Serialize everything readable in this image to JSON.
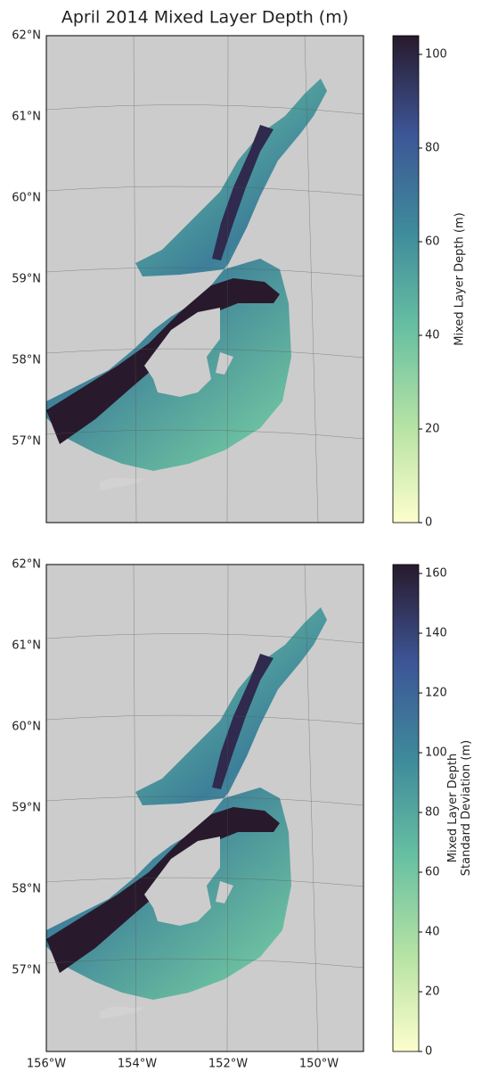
{
  "title": "April 2014 Mixed Layer Depth (m)",
  "panels": [
    {
      "lat_labels": [
        "62°N",
        "61°N",
        "60°N",
        "59°N",
        "58°N",
        "57°N"
      ],
      "colorbar": {
        "label": [
          "Mixed Layer Depth (m)"
        ],
        "lim": [
          0,
          104
        ],
        "ticks": [
          0,
          20,
          40,
          60,
          80,
          100
        ]
      }
    },
    {
      "lat_labels": [
        "62°N",
        "61°N",
        "60°N",
        "59°N",
        "58°N",
        "57°N"
      ],
      "colorbar": {
        "label": [
          "Mixed Layer Depth",
          "Standard Deviation (m)"
        ],
        "lim": [
          0,
          163
        ],
        "ticks": [
          0,
          20,
          40,
          60,
          80,
          100,
          120,
          140,
          160
        ]
      }
    }
  ],
  "lon_labels": [
    "156°W",
    "154°W",
    "152°W",
    "150°W"
  ]
}
